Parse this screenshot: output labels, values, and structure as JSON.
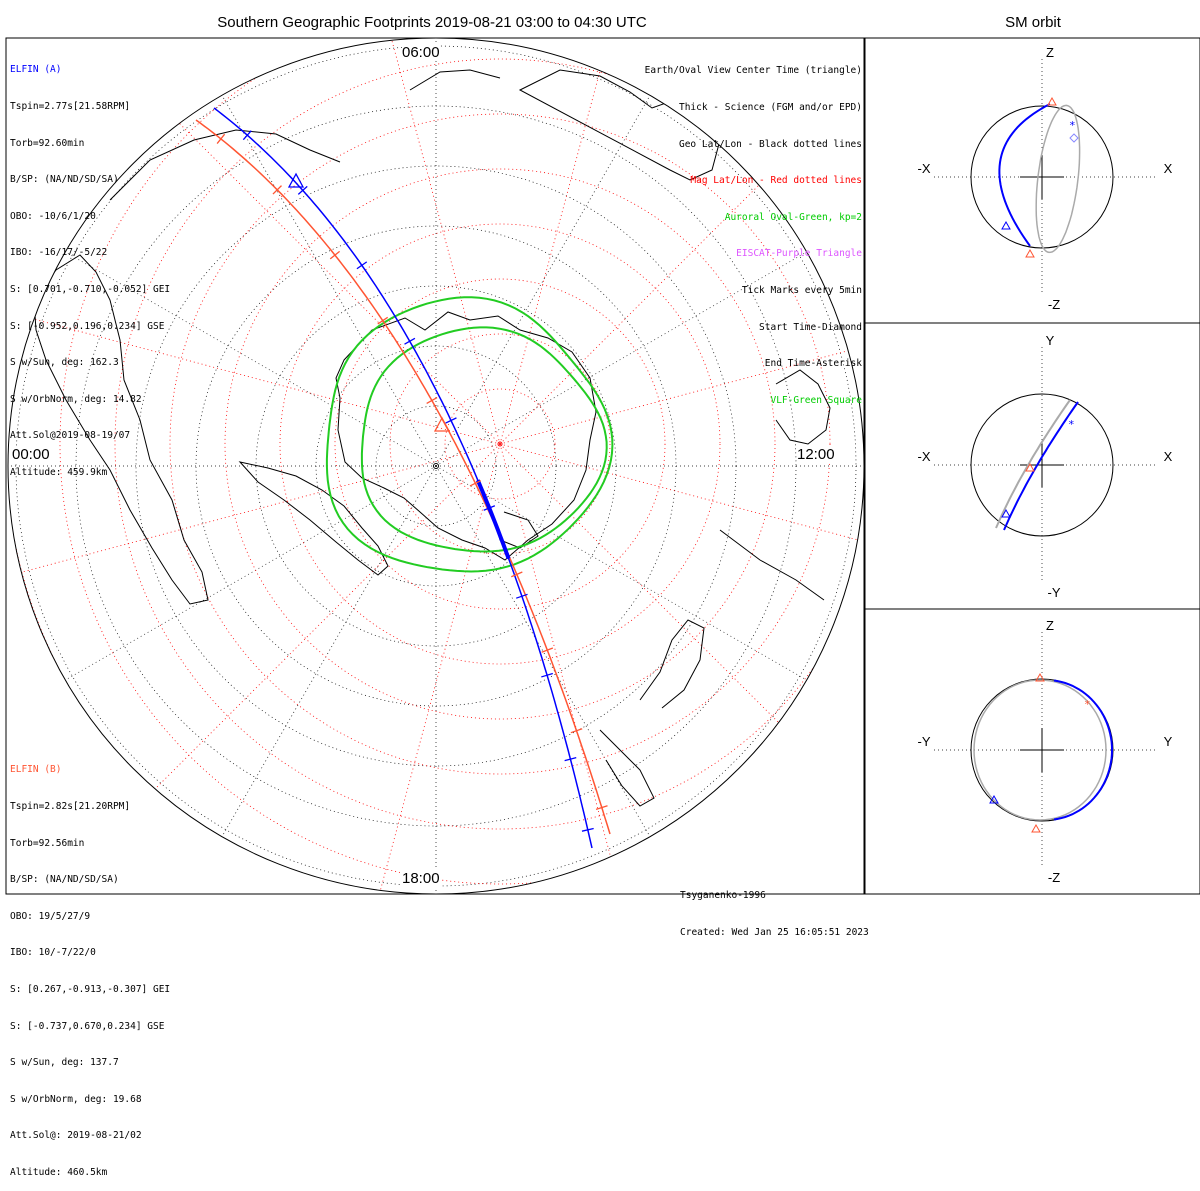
{
  "title": "Southern Geographic Footprints 2019-08-21 03:00 to 04:30 UTC",
  "sm_title": "SM orbit",
  "clock_labels": {
    "top": "06:00",
    "left": "00:00",
    "right": "12:00",
    "bottom": "18:00"
  },
  "elfin_a": {
    "name": "ELFIN (A)",
    "color": "#0000ff",
    "lines": [
      "Tspin=2.77s[21.58RPM]",
      "Torb=92.60min",
      "B/SP: (NA/ND/SD/SA)",
      "OBO: -10/6/1/20",
      "IBO: -16/17/-5/22",
      "S: [0.701,-0.710,-0.052] GEI",
      "S: [-0.952,0.196,0.234] GSE",
      "S w/Sun, deg: 162.3",
      "S w/OrbNorm, deg: 14.82",
      "Att.Sol@2019-08-19/07",
      "Altitude: 459.9km"
    ]
  },
  "elfin_b": {
    "name": "ELFIN (B)",
    "color": "#ff5533",
    "lines": [
      "Tspin=2.82s[21.20RPM]",
      "Torb=92.56min",
      "B/SP: (NA/ND/SD/SA)",
      "OBO: 19/5/27/9",
      "IBO: 10/-7/22/0",
      "S: [0.267,-0.913,-0.307] GEI",
      "S: [-0.737,0.670,0.234] GSE",
      "S w/Sun, deg: 137.7",
      "S w/OrbNorm, deg: 19.68",
      "Att.Sol@: 2019-08-21/02",
      "Altitude: 460.5km"
    ]
  },
  "legend": [
    {
      "text": "Earth/Oval View Center Time (triangle)",
      "color": "#000000"
    },
    {
      "text": "Thick - Science (FGM and/or EPD)",
      "color": "#000000"
    },
    {
      "text": "Geo Lat/Lon - Black dotted lines",
      "color": "#000000"
    },
    {
      "text": "Mag Lat/Lon - Red dotted lines",
      "color": "#ff0000"
    },
    {
      "text": "Auroral Oval-Green, kp=2",
      "color": "#00cc00"
    },
    {
      "text": "EISCAT-Purple Triangle",
      "color": "#dd55ff"
    },
    {
      "text": "Tick Marks every 5min",
      "color": "#000000"
    },
    {
      "text": "Start Time-Diamond",
      "color": "#000000"
    },
    {
      "text": "End Time-Asterisk",
      "color": "#000000"
    },
    {
      "text": "VLF-Green Square",
      "color": "#00cc00"
    }
  ],
  "credit": {
    "model": "Tsyganenko-1996",
    "created": "Created: Wed Jan 25 16:05:51 2023"
  },
  "sm_panels": [
    {
      "name": "xz",
      "top": "Z",
      "bottom": "-Z",
      "left": "-X",
      "right": "X"
    },
    {
      "name": "xy",
      "top": "Y",
      "bottom": "-Y",
      "left": "-X",
      "right": "X"
    },
    {
      "name": "yz",
      "top": "Z",
      "bottom": "-Z",
      "left": "-Y",
      "right": "Y"
    }
  ],
  "chart_data": {
    "type": "polar-map",
    "projection": "south polar geographic",
    "time_range": [
      "2019-08-21 03:00",
      "2019-08-21 04:30"
    ],
    "tick_interval_min": 5,
    "auroral_oval_kp": 2,
    "colors": {
      "elfin_a": "#0000ff",
      "elfin_b": "#ff5533",
      "oval": "#22cc22",
      "mag_grid": "#ff0000",
      "geo_grid": "#000000",
      "sm_projection": "#aaaaaa"
    }
  }
}
